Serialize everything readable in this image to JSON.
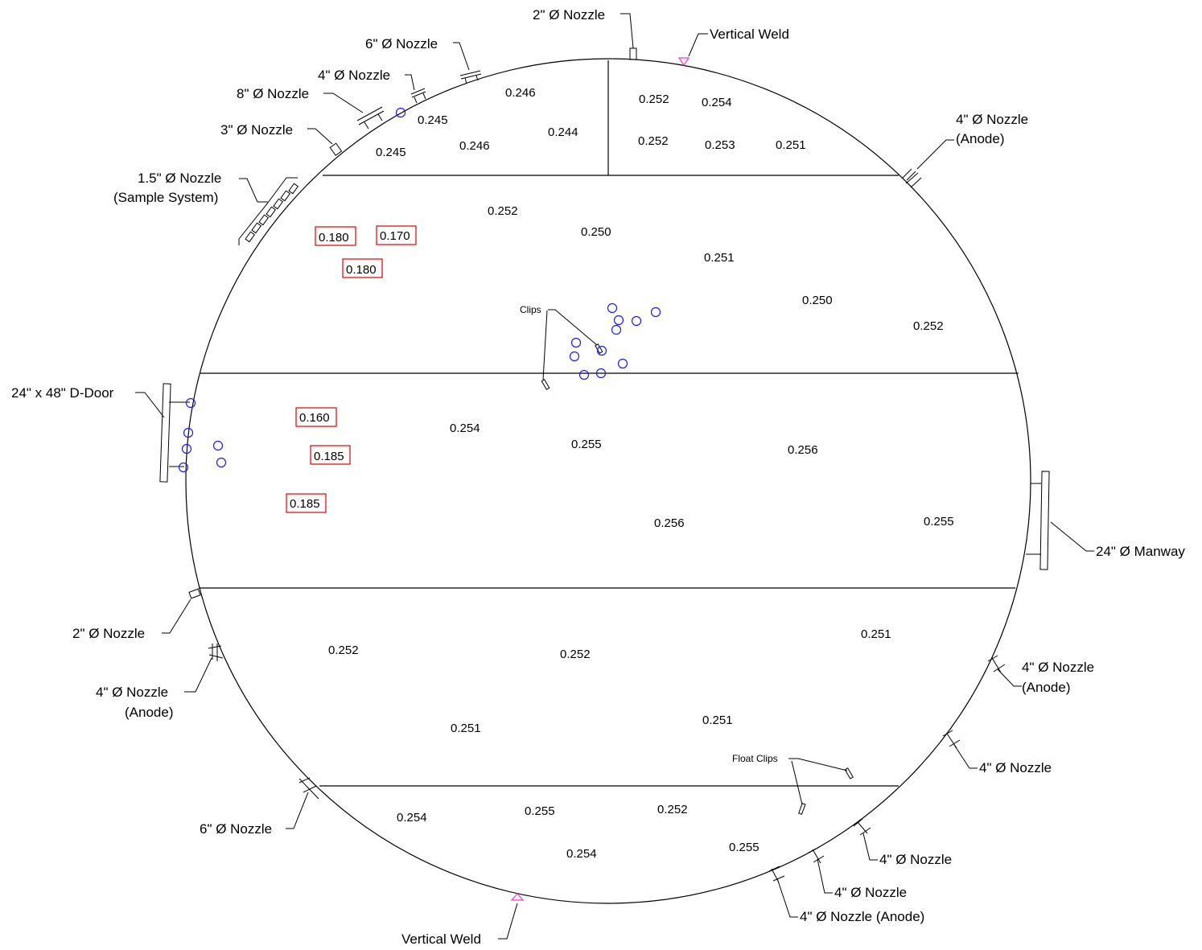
{
  "drawing": {
    "nozzle_labels": {
      "n_2in_top": "2\" Ø Nozzle",
      "vertical_weld_top": "Vertical Weld",
      "n_6in_top": "6\" Ø Nozzle",
      "n_4in_top": "4\" Ø Nozzle",
      "n_8in": "8\" Ø Nozzle",
      "n_3in": "3\" Ø Nozzle",
      "n_15in_line1": "1.5\" Ø Nozzle",
      "n_15in_line2": "(Sample System)",
      "n_4in_anode_tr_line1": "4\" Ø Nozzle",
      "n_4in_anode_tr_line2": "(Anode)",
      "d_door": "24\" x 48\" D-Door",
      "manway": "24\" Ø Manway",
      "n_2in_left": "2\" Ø Nozzle",
      "n_4in_anode_left_line1": "4\" Ø Nozzle",
      "n_4in_anode_left_line2": "(Anode)",
      "n_4in_anode_right_line1": "4\" Ø Nozzle",
      "n_4in_anode_right_line2": "(Anode)",
      "n_4in_right": "4\" Ø Nozzle",
      "n_6in_bottom": "6\" Ø Nozzle",
      "n_4in_br1": "4\" Ø Nozzle",
      "n_4in_br2": "4\" Ø Nozzle",
      "n_4in_anode_bottom": "4\" Ø Nozzle (Anode)",
      "vertical_weld_bottom": "Vertical Weld",
      "clips": "Clips",
      "float_clips": "Float Clips"
    },
    "readings_top_left": [
      "0.246",
      "0.245",
      "0.245",
      "0.246",
      "0.244"
    ],
    "readings_top_right": [
      "0.252",
      "0.254",
      "0.252",
      "0.253",
      "0.251"
    ],
    "readings_course2": [
      "0.252",
      "0.250",
      "0.251",
      "0.250",
      "0.252"
    ],
    "readings_course3": [
      "0.254",
      "0.255",
      "0.256",
      "0.256",
      "0.255"
    ],
    "readings_course4": [
      "0.252",
      "0.252",
      "0.251",
      "0.251",
      "0.251"
    ],
    "readings_bottom": [
      "0.254",
      "0.255",
      "0.252",
      "0.254",
      "0.255"
    ],
    "flagged_readings": [
      "0.180",
      "0.170",
      "0.180",
      "0.160",
      "0.185",
      "0.185"
    ],
    "colors": {
      "outline": "#000000",
      "flag_box": "#e00000",
      "pit_circle": "#1a1aff",
      "weld_marker": "#ff33cc"
    }
  }
}
